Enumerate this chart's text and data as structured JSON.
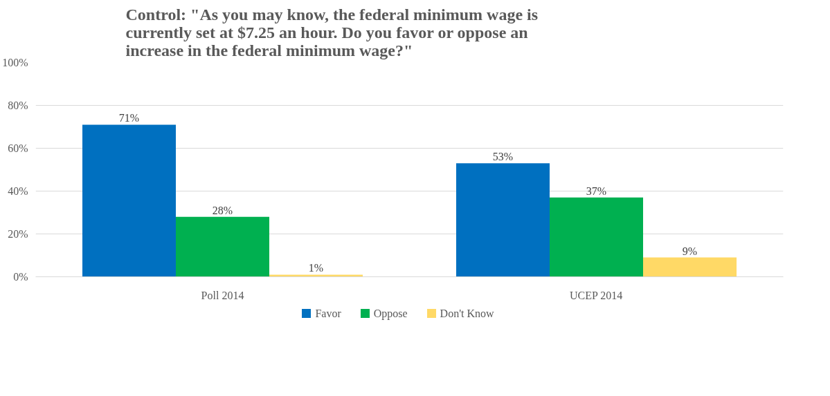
{
  "chart_data": {
    "type": "bar",
    "title": "Control: \"As you may know, the federal minimum wage is currently set at $7.25 an hour. Do you favor or oppose an increase in the federal minimum wage?\"",
    "categories": [
      "Poll 2014",
      "UCEP 2014"
    ],
    "series": [
      {
        "name": "Favor",
        "color": "#0070c0",
        "values": [
          71,
          53
        ],
        "value_labels": [
          "71%",
          "53%"
        ]
      },
      {
        "name": "Oppose",
        "color": "#00b050",
        "values": [
          28,
          37
        ],
        "value_labels": [
          "28%",
          "37%"
        ]
      },
      {
        "name": "Don't Know",
        "color": "#ffd966",
        "values": [
          1,
          9
        ],
        "value_labels": [
          "1%",
          "9%"
        ]
      }
    ],
    "ylim": [
      0,
      100
    ],
    "yticks": [
      {
        "value": 0,
        "label": "0%"
      },
      {
        "value": 20,
        "label": "20%"
      },
      {
        "value": 40,
        "label": "40%"
      },
      {
        "value": 60,
        "label": "60%"
      },
      {
        "value": 80,
        "label": "80%"
      },
      {
        "value": 100,
        "label": "100%"
      }
    ],
    "grid": "y",
    "legend": "bottom"
  }
}
